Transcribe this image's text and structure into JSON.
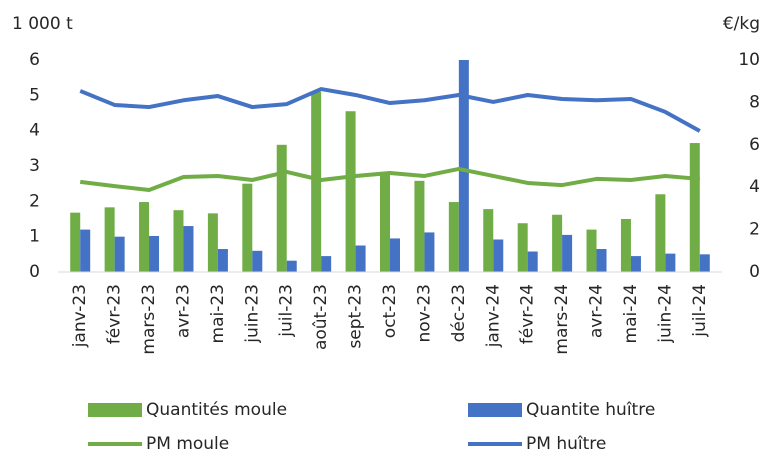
{
  "chart_data": {
    "type": "bar",
    "y_unit": "1 000 t",
    "y2_unit": "€/kg",
    "categories": [
      "janv-23",
      "févr-23",
      "mars-23",
      "avr-23",
      "mai-23",
      "juin-23",
      "juil-23",
      "août-23",
      "sept-23",
      "oct-23",
      "nov-23",
      "déc-23",
      "janv-24",
      "févr-24",
      "mars-24",
      "avr-24",
      "mai-24",
      "juin-24",
      "juil-24"
    ],
    "series": [
      {
        "name": "Quantités moule",
        "type": "bar",
        "color": "#70ad47",
        "values": [
          1.68,
          1.83,
          1.98,
          1.75,
          1.66,
          2.5,
          3.6,
          5.1,
          4.55,
          2.75,
          2.58,
          1.98,
          1.78,
          1.38,
          1.62,
          1.2,
          1.5,
          2.2,
          3.65
        ]
      },
      {
        "name": "Quantite huître",
        "type": "bar",
        "color": "#4472c4",
        "values": [
          1.2,
          1.0,
          1.02,
          1.3,
          0.65,
          0.6,
          0.32,
          0.45,
          0.75,
          0.95,
          1.12,
          6.5,
          0.92,
          0.58,
          1.05,
          0.65,
          0.45,
          0.52,
          0.5
        ]
      },
      {
        "name": "PM moule",
        "type": "line",
        "axis": "y2",
        "color": "#70ad47",
        "values": [
          4.25,
          4.05,
          3.87,
          4.48,
          4.53,
          4.34,
          4.72,
          4.34,
          4.53,
          4.67,
          4.53,
          4.86,
          4.53,
          4.2,
          4.1,
          4.39,
          4.34,
          4.53,
          4.39
        ]
      },
      {
        "name": "PM huître",
        "type": "line",
        "axis": "y2",
        "color": "#4472c4",
        "values": [
          8.54,
          7.88,
          7.78,
          8.1,
          8.3,
          7.78,
          7.92,
          8.63,
          8.35,
          7.97,
          8.1,
          8.35,
          8.02,
          8.35,
          8.16,
          8.1,
          8.16,
          7.55,
          6.65
        ]
      }
    ],
    "ylim": [
      0,
      6
    ],
    "yticks": [
      0,
      1,
      2,
      3,
      4,
      5,
      6
    ],
    "y2lim": [
      0,
      10
    ],
    "y2ticks": [
      0,
      2,
      4,
      6,
      8,
      10
    ],
    "legend": "bottom",
    "grid": false
  }
}
